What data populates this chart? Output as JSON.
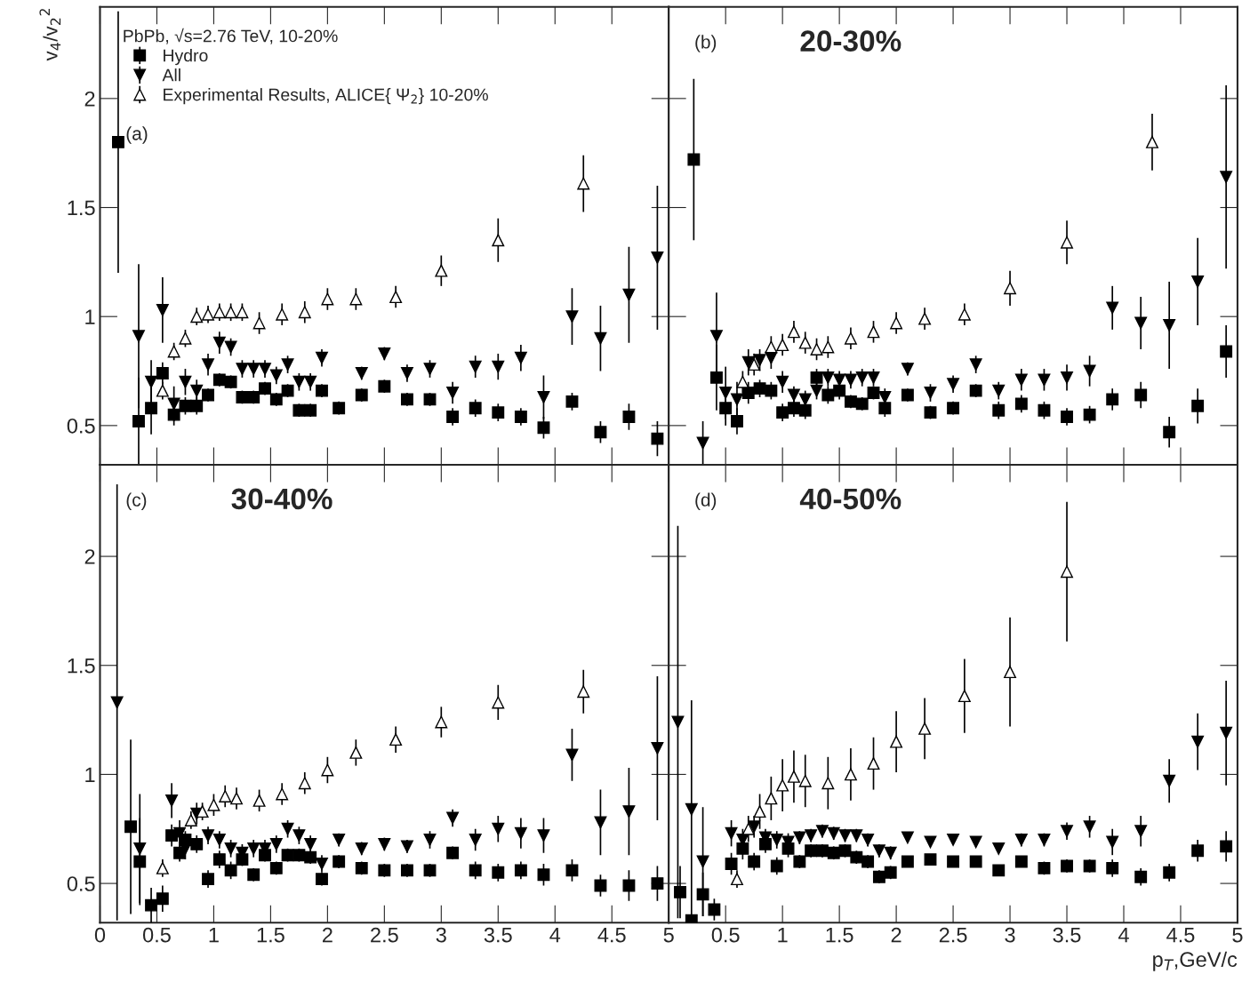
{
  "chart_data": [
    {
      "type": "scatter",
      "legend_title": "PbPb, √s=2.76 TeV, 10-20%",
      "legend": "top left",
      "ylabel": "v$_{4}$/v$_{2}$$^{2}$",
      "annotations": [
        "(a)"
      ],
      "xlim": [
        0,
        5
      ],
      "ylim": [
        0.32,
        2.42
      ],
      "xticks": [
        0,
        0.5,
        1,
        1.5,
        2,
        2.5,
        3,
        3.5,
        4,
        4.5,
        5
      ],
      "yticks": [
        0.5,
        1,
        1.5,
        2
      ],
      "tick_labels": "y",
      "grid": false,
      "series": [
        {
          "name": "Hydro",
          "color": "#000000",
          "marker": "square",
          "x": [
            0.16,
            0.34,
            0.45,
            0.55,
            0.65,
            0.75,
            0.85,
            0.95,
            1.05,
            1.15,
            1.25,
            1.35,
            1.45,
            1.55,
            1.65,
            1.75,
            1.85,
            1.95,
            2.1,
            2.3,
            2.5,
            2.7,
            2.9,
            3.1,
            3.3,
            3.5,
            3.7,
            3.9,
            4.15,
            4.4,
            4.65,
            4.9
          ],
          "values": [
            1.8,
            0.52,
            0.58,
            0.74,
            0.55,
            0.59,
            0.59,
            0.64,
            0.71,
            0.7,
            0.63,
            0.63,
            0.67,
            0.62,
            0.66,
            0.57,
            0.57,
            0.66,
            0.58,
            0.64,
            0.68,
            0.62,
            0.62,
            0.54,
            0.58,
            0.56,
            0.54,
            0.49,
            0.61,
            0.47,
            0.54,
            0.44
          ],
          "errors": [
            0.6,
            0.2,
            0.12,
            0.05,
            0.05,
            0.04,
            0.04,
            0.03,
            0.03,
            0.03,
            0.03,
            0.03,
            0.03,
            0.03,
            0.03,
            0.03,
            0.03,
            0.03,
            0.03,
            0.03,
            0.03,
            0.03,
            0.03,
            0.04,
            0.04,
            0.04,
            0.04,
            0.05,
            0.04,
            0.05,
            0.06,
            0.08
          ]
        },
        {
          "name": "All",
          "color": "#000000",
          "marker": "triangle_down",
          "x": [
            0.34,
            0.45,
            0.55,
            0.65,
            0.75,
            0.85,
            0.95,
            1.05,
            1.15,
            1.25,
            1.35,
            1.45,
            1.55,
            1.65,
            1.75,
            1.85,
            1.95,
            2.3,
            2.5,
            2.7,
            2.9,
            3.1,
            3.3,
            3.5,
            3.7,
            3.9,
            4.15,
            4.4,
            4.65,
            4.9
          ],
          "values": [
            0.91,
            0.7,
            1.03,
            0.6,
            0.7,
            0.66,
            0.78,
            0.88,
            0.86,
            0.76,
            0.76,
            0.76,
            0.73,
            0.78,
            0.7,
            0.7,
            0.81,
            0.74,
            0.83,
            0.74,
            0.76,
            0.65,
            0.77,
            0.77,
            0.81,
            0.63,
            1.0,
            0.9,
            1.1,
            1.27
          ],
          "errors": [
            0.33,
            0.1,
            0.15,
            0.08,
            0.06,
            0.05,
            0.05,
            0.05,
            0.04,
            0.04,
            0.04,
            0.04,
            0.04,
            0.04,
            0.04,
            0.04,
            0.04,
            0.03,
            0.03,
            0.04,
            0.04,
            0.05,
            0.05,
            0.06,
            0.06,
            0.1,
            0.13,
            0.15,
            0.22,
            0.33
          ]
        },
        {
          "name": "Experimental Results, ALICE{ Ψ$_{2}$} 10-20%",
          "color": "#000000",
          "marker": "triangle",
          "x": [
            0.55,
            0.65,
            0.75,
            0.85,
            0.95,
            1.05,
            1.15,
            1.25,
            1.4,
            1.6,
            1.8,
            2.0,
            2.25,
            2.6,
            3.0,
            3.5,
            4.25
          ],
          "values": [
            0.66,
            0.84,
            0.9,
            1.0,
            1.01,
            1.02,
            1.02,
            1.02,
            0.97,
            1.01,
            1.02,
            1.08,
            1.08,
            1.09,
            1.21,
            1.35,
            1.61
          ],
          "errors": [
            0.04,
            0.04,
            0.04,
            0.04,
            0.04,
            0.04,
            0.04,
            0.04,
            0.05,
            0.05,
            0.05,
            0.05,
            0.05,
            0.05,
            0.07,
            0.1,
            0.13
          ]
        }
      ]
    },
    {
      "type": "scatter",
      "annotations": [
        "(b)",
        "20-30%"
      ],
      "xlim": [
        0,
        5
      ],
      "ylim": [
        0.32,
        2.42
      ],
      "xticks": [
        0,
        0.5,
        1,
        1.5,
        2,
        2.5,
        3,
        3.5,
        4,
        4.5,
        5
      ],
      "yticks": [
        0.5,
        1,
        1.5,
        2
      ],
      "tick_labels": false,
      "grid": false,
      "series": [
        {
          "color": "#000000",
          "marker": "square",
          "x": [
            0.22,
            0.42,
            0.5,
            0.6,
            0.7,
            0.8,
            0.9,
            1.0,
            1.1,
            1.2,
            1.3,
            1.4,
            1.5,
            1.6,
            1.7,
            1.8,
            1.9,
            2.1,
            2.3,
            2.5,
            2.7,
            2.9,
            3.1,
            3.3,
            3.5,
            3.7,
            3.9,
            4.15,
            4.4,
            4.65,
            4.9
          ],
          "values": [
            1.72,
            0.72,
            0.58,
            0.52,
            0.65,
            0.67,
            0.66,
            0.56,
            0.58,
            0.57,
            0.72,
            0.64,
            0.66,
            0.61,
            0.6,
            0.65,
            0.58,
            0.64,
            0.56,
            0.58,
            0.66,
            0.57,
            0.6,
            0.57,
            0.54,
            0.55,
            0.62,
            0.64,
            0.47,
            0.59,
            0.84
          ],
          "errors": [
            0.37,
            0.15,
            0.08,
            0.06,
            0.05,
            0.04,
            0.04,
            0.04,
            0.04,
            0.04,
            0.04,
            0.04,
            0.04,
            0.03,
            0.03,
            0.03,
            0.04,
            0.03,
            0.03,
            0.03,
            0.03,
            0.04,
            0.04,
            0.04,
            0.04,
            0.04,
            0.05,
            0.06,
            0.07,
            0.08,
            0.12
          ]
        },
        {
          "color": "#000000",
          "marker": "triangle_down",
          "x": [
            0.3,
            0.42,
            0.5,
            0.6,
            0.7,
            0.8,
            0.9,
            1.0,
            1.1,
            1.2,
            1.3,
            1.4,
            1.5,
            1.6,
            1.7,
            1.8,
            1.9,
            2.1,
            2.3,
            2.5,
            2.7,
            2.9,
            3.1,
            3.3,
            3.5,
            3.7,
            3.9,
            4.15,
            4.4,
            4.65,
            4.9
          ],
          "values": [
            0.42,
            0.91,
            0.65,
            0.62,
            0.79,
            0.8,
            0.81,
            0.7,
            0.64,
            0.62,
            0.66,
            0.72,
            0.71,
            0.71,
            0.72,
            0.72,
            0.63,
            0.76,
            0.65,
            0.69,
            0.78,
            0.66,
            0.71,
            0.71,
            0.72,
            0.75,
            1.04,
            0.97,
            0.96,
            1.16,
            1.64
          ],
          "errors": [
            0.1,
            0.2,
            0.12,
            0.08,
            0.06,
            0.05,
            0.05,
            0.05,
            0.04,
            0.04,
            0.04,
            0.04,
            0.04,
            0.04,
            0.04,
            0.04,
            0.04,
            0.03,
            0.04,
            0.04,
            0.04,
            0.04,
            0.05,
            0.05,
            0.06,
            0.07,
            0.1,
            0.12,
            0.2,
            0.2,
            0.42
          ]
        },
        {
          "color": "#000000",
          "marker": "triangle",
          "x": [
            0.65,
            0.75,
            0.9,
            1.0,
            1.1,
            1.2,
            1.3,
            1.4,
            1.6,
            1.8,
            2.0,
            2.25,
            2.6,
            3.0,
            3.5,
            4.25
          ],
          "values": [
            0.7,
            0.78,
            0.86,
            0.87,
            0.93,
            0.88,
            0.85,
            0.86,
            0.9,
            0.93,
            0.97,
            0.99,
            1.01,
            1.13,
            1.34,
            1.8
          ],
          "errors": [
            0.05,
            0.05,
            0.05,
            0.05,
            0.05,
            0.05,
            0.05,
            0.05,
            0.05,
            0.05,
            0.05,
            0.05,
            0.05,
            0.08,
            0.1,
            0.13
          ]
        }
      ]
    },
    {
      "type": "scatter",
      "annotations": [
        "(c)",
        "30-40%"
      ],
      "xlim": [
        0,
        5
      ],
      "ylim": [
        0.32,
        2.42
      ],
      "xticks": [
        0,
        0.5,
        1,
        1.5,
        2,
        2.5,
        3,
        3.5,
        4,
        4.5,
        5
      ],
      "yticks": [
        0.5,
        1,
        1.5,
        2
      ],
      "grid": false,
      "series": [
        {
          "color": "#000000",
          "marker": "square",
          "x": [
            0.27,
            0.35,
            0.45,
            0.55,
            0.63,
            0.7,
            0.75,
            0.85,
            0.95,
            1.05,
            1.15,
            1.25,
            1.35,
            1.45,
            1.55,
            1.65,
            1.75,
            1.85,
            1.95,
            2.1,
            2.3,
            2.5,
            2.7,
            2.9,
            3.1,
            3.3,
            3.5,
            3.7,
            3.9,
            4.15,
            4.4,
            4.65,
            4.9
          ],
          "values": [
            0.76,
            0.6,
            0.4,
            0.43,
            0.72,
            0.64,
            0.7,
            0.68,
            0.52,
            0.61,
            0.56,
            0.61,
            0.54,
            0.63,
            0.57,
            0.63,
            0.63,
            0.62,
            0.52,
            0.6,
            0.57,
            0.56,
            0.56,
            0.56,
            0.64,
            0.56,
            0.55,
            0.56,
            0.54,
            0.56,
            0.49,
            0.49,
            0.5
          ],
          "errors": [
            0.4,
            0.2,
            0.08,
            0.06,
            0.05,
            0.04,
            0.04,
            0.04,
            0.04,
            0.04,
            0.04,
            0.03,
            0.03,
            0.03,
            0.03,
            0.03,
            0.03,
            0.03,
            0.03,
            0.03,
            0.03,
            0.03,
            0.03,
            0.03,
            0.03,
            0.04,
            0.04,
            0.04,
            0.05,
            0.05,
            0.05,
            0.07,
            0.08
          ]
        },
        {
          "color": "#000000",
          "marker": "triangle_down",
          "x": [
            0.15,
            0.35,
            0.63,
            0.7,
            0.75,
            0.85,
            0.95,
            1.05,
            1.15,
            1.25,
            1.35,
            1.45,
            1.55,
            1.65,
            1.75,
            1.85,
            1.95,
            2.1,
            2.3,
            2.5,
            2.7,
            2.9,
            3.1,
            3.3,
            3.5,
            3.7,
            3.9,
            4.15,
            4.4,
            4.65,
            4.9
          ],
          "values": [
            1.33,
            0.66,
            0.88,
            0.73,
            0.66,
            0.82,
            0.72,
            0.7,
            0.66,
            0.64,
            0.66,
            0.66,
            0.68,
            0.75,
            0.72,
            0.68,
            0.59,
            0.7,
            0.66,
            0.68,
            0.67,
            0.7,
            0.8,
            0.7,
            0.75,
            0.73,
            0.72,
            1.09,
            0.78,
            0.83,
            1.12
          ],
          "errors": [
            1.0,
            0.25,
            0.08,
            0.06,
            0.05,
            0.05,
            0.04,
            0.04,
            0.04,
            0.04,
            0.04,
            0.04,
            0.04,
            0.04,
            0.04,
            0.04,
            0.04,
            0.03,
            0.03,
            0.03,
            0.03,
            0.04,
            0.04,
            0.05,
            0.06,
            0.07,
            0.08,
            0.12,
            0.15,
            0.2,
            0.33
          ]
        },
        {
          "color": "#000000",
          "marker": "triangle",
          "x": [
            0.55,
            0.7,
            0.8,
            0.9,
            1.0,
            1.1,
            1.2,
            1.4,
            1.6,
            1.8,
            2.0,
            2.25,
            2.6,
            3.0,
            3.5,
            4.25
          ],
          "values": [
            0.57,
            null,
            0.79,
            0.83,
            0.86,
            0.9,
            0.89,
            0.88,
            0.91,
            0.96,
            1.02,
            1.1,
            1.16,
            1.24,
            1.33,
            1.38
          ],
          "errors": [
            0.04,
            null,
            0.04,
            0.04,
            0.05,
            0.05,
            0.05,
            0.05,
            0.05,
            0.05,
            0.06,
            0.06,
            0.06,
            0.07,
            0.08,
            0.1
          ]
        }
      ]
    },
    {
      "type": "scatter",
      "xlabel": "p$_{T}$,GeV/c",
      "annotations": [
        "(d)",
        "40-50%"
      ],
      "xlim": [
        0,
        5
      ],
      "ylim": [
        0.32,
        2.42
      ],
      "xticks": [
        {
          "value": 0,
          "label": null
        },
        0.5,
        1,
        1.5,
        2,
        2.5,
        3,
        3.5,
        4,
        4.5,
        5
      ],
      "yticks": [
        0.5,
        1,
        1.5,
        2
      ],
      "tick_labels": "x",
      "grid": false,
      "series": [
        {
          "color": "#000000",
          "marker": "square",
          "x": [
            0.1,
            0.2,
            0.3,
            0.4,
            0.55,
            0.65,
            0.75,
            0.85,
            0.95,
            1.05,
            1.15,
            1.25,
            1.35,
            1.45,
            1.55,
            1.65,
            1.75,
            1.85,
            1.95,
            2.1,
            2.3,
            2.5,
            2.7,
            2.9,
            3.1,
            3.3,
            3.5,
            3.7,
            3.9,
            4.15,
            4.4,
            4.65,
            4.9
          ],
          "values": [
            0.46,
            0.33,
            0.45,
            0.38,
            0.59,
            0.66,
            0.6,
            0.68,
            0.58,
            0.66,
            0.6,
            0.65,
            0.65,
            0.64,
            0.65,
            0.62,
            0.6,
            0.53,
            0.55,
            0.6,
            0.61,
            0.6,
            0.6,
            0.56,
            0.6,
            0.57,
            0.58,
            0.58,
            0.57,
            0.53,
            0.55,
            0.65,
            0.67
          ],
          "errors": [
            0.12,
            0.01,
            0.1,
            0.05,
            0.05,
            0.05,
            0.04,
            0.04,
            0.04,
            0.04,
            0.03,
            0.03,
            0.03,
            0.03,
            0.03,
            0.03,
            0.03,
            0.03,
            0.03,
            0.02,
            0.02,
            0.02,
            0.02,
            0.02,
            0.02,
            0.03,
            0.03,
            0.03,
            0.04,
            0.04,
            0.04,
            0.05,
            0.07
          ]
        },
        {
          "color": "#000000",
          "marker": "triangle_down",
          "x": [
            0.08,
            0.2,
            0.3,
            0.55,
            0.65,
            0.75,
            0.85,
            0.95,
            1.05,
            1.15,
            1.25,
            1.35,
            1.45,
            1.55,
            1.65,
            1.75,
            1.85,
            1.95,
            2.1,
            2.3,
            2.5,
            2.7,
            2.9,
            3.1,
            3.3,
            3.5,
            3.7,
            3.9,
            4.15,
            4.4,
            4.65,
            4.9
          ],
          "values": [
            1.24,
            0.84,
            0.6,
            0.73,
            0.7,
            0.76,
            0.71,
            0.7,
            0.69,
            0.71,
            0.72,
            0.74,
            0.73,
            0.72,
            0.72,
            0.7,
            0.65,
            0.64,
            0.71,
            0.69,
            0.7,
            0.69,
            0.66,
            0.7,
            0.7,
            0.74,
            0.76,
            0.69,
            0.74,
            0.97,
            1.15,
            1.19
          ],
          "errors": [
            0.9,
            0.5,
            0.25,
            0.06,
            0.05,
            0.05,
            0.04,
            0.04,
            0.04,
            0.03,
            0.03,
            0.03,
            0.03,
            0.03,
            0.03,
            0.03,
            0.03,
            0.03,
            0.02,
            0.02,
            0.02,
            0.02,
            0.02,
            0.03,
            0.03,
            0.04,
            0.05,
            0.06,
            0.07,
            0.1,
            0.13,
            0.24
          ]
        },
        {
          "color": "#000000",
          "marker": "triangle",
          "x": [
            0.6,
            0.7,
            0.8,
            0.9,
            1.0,
            1.1,
            1.2,
            1.4,
            1.6,
            1.8,
            2.0,
            2.25,
            2.6,
            3.0,
            3.5
          ],
          "values": [
            0.52,
            0.75,
            0.83,
            0.89,
            0.95,
            0.99,
            0.97,
            0.96,
            1.0,
            1.05,
            1.15,
            1.21,
            1.36,
            1.47,
            1.93
          ],
          "errors": [
            0.04,
            0.06,
            0.08,
            0.1,
            0.12,
            0.12,
            0.12,
            0.12,
            0.12,
            0.12,
            0.14,
            0.14,
            0.17,
            0.25,
            0.32
          ]
        }
      ]
    }
  ]
}
